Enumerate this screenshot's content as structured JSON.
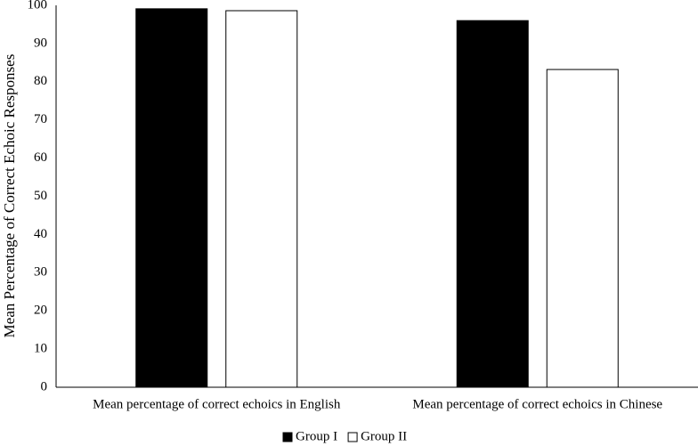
{
  "chart_data": {
    "type": "bar",
    "y_label": "Mean Percentage of Correct Echoic Responses",
    "categories": [
      "Mean percentage of correct echoics in English",
      "Mean percentage of correct echoics in Chinese"
    ],
    "series": [
      {
        "name": "Group I",
        "color": "#000000",
        "values": [
          99.1,
          96.0
        ]
      },
      {
        "name": "Group II",
        "color": "#ffffff",
        "values": [
          98.6,
          83.2
        ]
      }
    ],
    "ylim": [
      0,
      100
    ],
    "yticks": [
      0,
      10,
      20,
      30,
      40,
      50,
      60,
      70,
      80,
      90,
      100
    ],
    "grid": false,
    "legend": "bottom"
  }
}
